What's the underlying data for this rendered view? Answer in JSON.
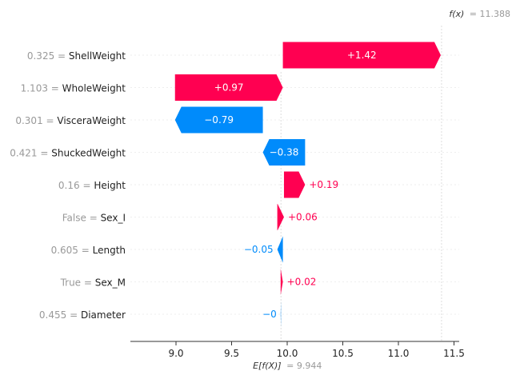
{
  "chart_data": {
    "type": "waterfall",
    "base_value": 9.944,
    "output_value": 11.388,
    "base_label_prefix": "E[f(X)]",
    "base_label_value": "= 9.944",
    "output_label_prefix": "f(x)",
    "output_label_value": "= 11.388",
    "xlim": [
      8.59,
      11.55
    ],
    "xticks": [
      "9.0",
      "9.5",
      "10.0",
      "10.5",
      "11.0",
      "11.5"
    ],
    "features": [
      {
        "value": "0.325",
        "name": "ShellWeight",
        "shap": 1.42,
        "label": "+1.42"
      },
      {
        "value": "1.103",
        "name": "WholeWeight",
        "shap": 0.97,
        "label": "+0.97"
      },
      {
        "value": "0.301",
        "name": "VisceraWeight",
        "shap": -0.79,
        "label": "−0.79"
      },
      {
        "value": "0.421",
        "name": "ShuckedWeight",
        "shap": -0.38,
        "label": "−0.38"
      },
      {
        "value": "0.16",
        "name": "Height",
        "shap": 0.19,
        "label": "+0.19"
      },
      {
        "value": "False",
        "name": "Sex_I",
        "shap": 0.06,
        "label": "+0.06"
      },
      {
        "value": "0.605",
        "name": "Length",
        "shap": -0.05,
        "label": "−0.05"
      },
      {
        "value": "True",
        "name": "Sex_M",
        "shap": 0.02,
        "label": "+0.02"
      },
      {
        "value": "0.455",
        "name": "Diameter",
        "shap": -0.003,
        "label": "−0"
      }
    ],
    "colors": {
      "positive": "#ff0051",
      "negative": "#008bfb"
    }
  }
}
